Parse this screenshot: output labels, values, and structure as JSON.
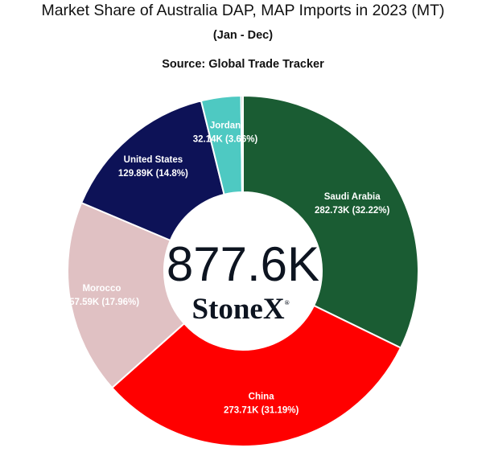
{
  "chart_data": {
    "type": "pie",
    "title": "Market Share of Australia DAP, MAP Imports in 2023 (MT)",
    "subtitle": "(Jan - Dec)",
    "source": "Source: Global Trade Tracker",
    "center_total": "877.6K",
    "center_logo": "StoneX",
    "center_logo_mark": "®",
    "donut": true,
    "slices": [
      {
        "name": "Saudi Arabia",
        "value": 282.73,
        "value_label": "282.73K (32.22%)",
        "percent": 32.22,
        "color": "#1a5c33"
      },
      {
        "name": "China",
        "value": 273.71,
        "value_label": "273.71K (31.19%)",
        "percent": 31.19,
        "color": "#ff0000"
      },
      {
        "name": "Morocco",
        "value": 157.59,
        "value_label": "157.59K (17.96%)",
        "percent": 17.96,
        "color": "#e0c1c3"
      },
      {
        "name": "United States",
        "value": 129.89,
        "value_label": "129.89K (14.8%)",
        "percent": 14.8,
        "color": "#0d1257"
      },
      {
        "name": "Jordan",
        "value": 32.14,
        "value_label": "32.14K (3.66%)",
        "percent": 3.66,
        "color": "#4ec9c2"
      },
      {
        "name": "",
        "value": 1.54,
        "value_label": "",
        "percent": 0.17,
        "color": "#9a9a9a"
      }
    ]
  }
}
